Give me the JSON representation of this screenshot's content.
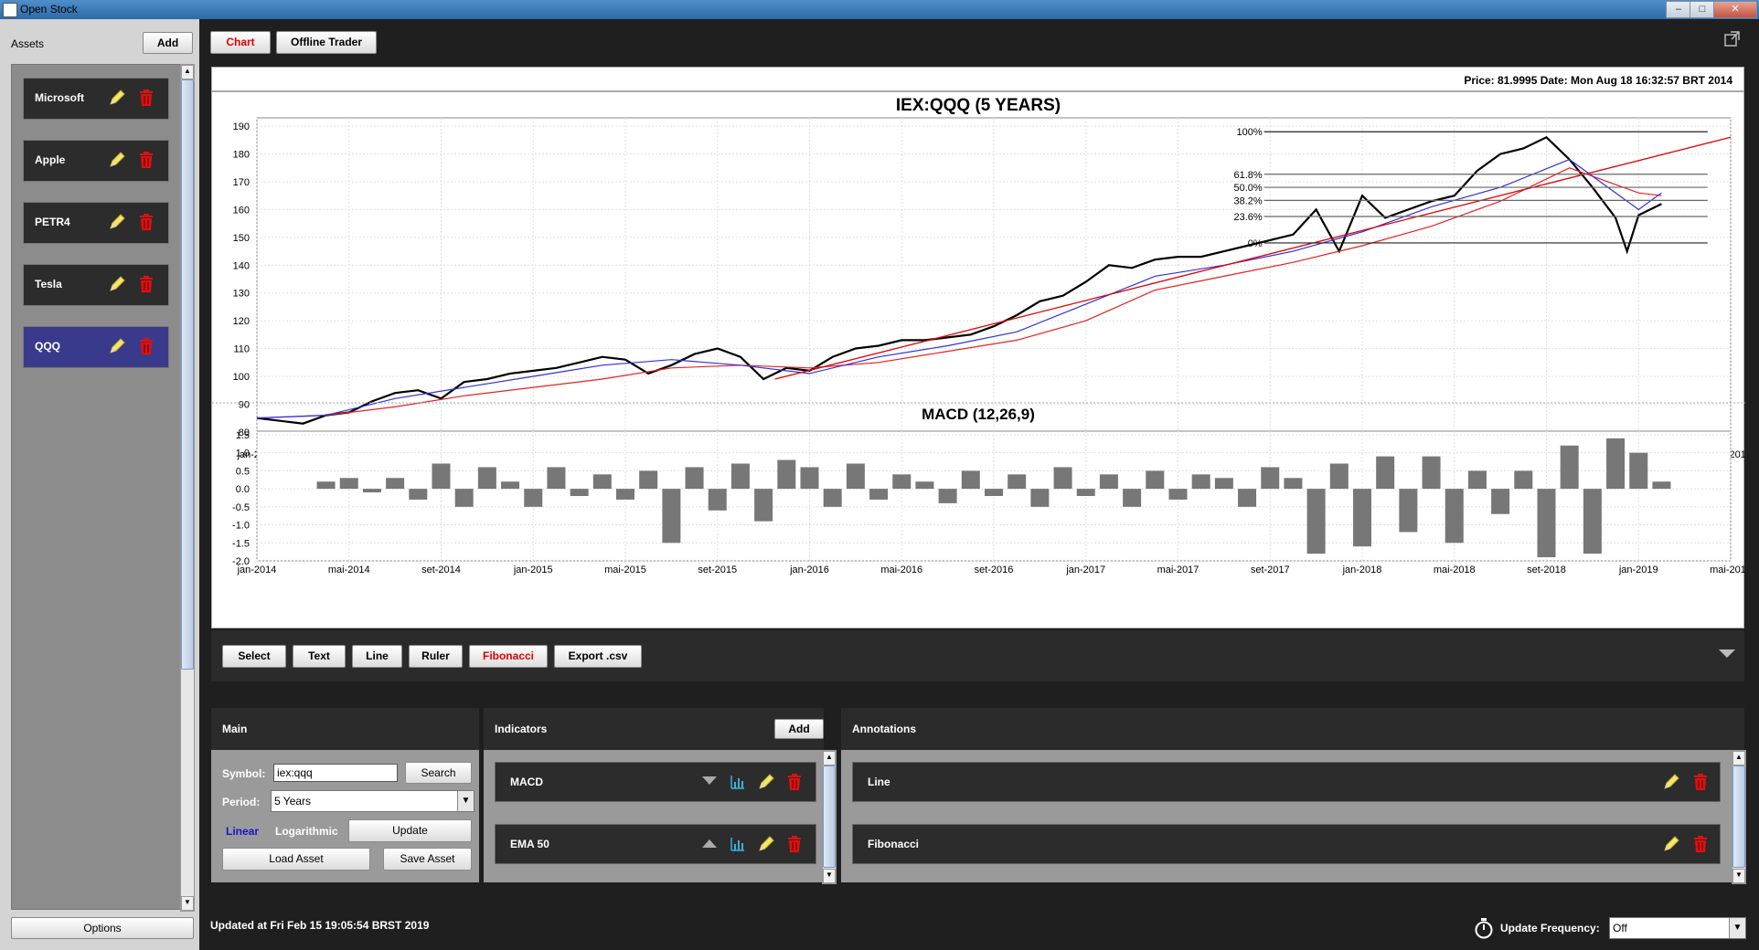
{
  "window": {
    "title": "Open Stock",
    "minimize": "–",
    "maximize": "□",
    "close": "✕"
  },
  "sidebar": {
    "assets_label": "Assets",
    "add_label": "Add",
    "assets": [
      {
        "label": "Microsoft",
        "selected": false
      },
      {
        "label": "Apple",
        "selected": false
      },
      {
        "label": "PETR4",
        "selected": false
      },
      {
        "label": "Tesla",
        "selected": false
      },
      {
        "label": "QQQ",
        "selected": true
      }
    ],
    "options_label": "Options"
  },
  "tabs": [
    {
      "label": "Chart",
      "active": true
    },
    {
      "label": "Offline Trader",
      "active": false
    }
  ],
  "price_info": "Price: 81.9995 Date: Mon Aug 18 16:32:57 BRT 2014",
  "chart_data": [
    {
      "type": "line",
      "title": "IEX:QQQ (5 YEARS)",
      "x_ticks": [
        "jan-2014",
        "mai-2014",
        "set-2014",
        "jan-2015",
        "mai-2015",
        "set-2015",
        "jan-2016",
        "mai-2016",
        "set-2016",
        "jan-2017",
        "mai-2017",
        "set-2017",
        "jan-2018",
        "mai-2018",
        "set-2018",
        "jan-2019",
        "mai-2019"
      ],
      "y_ticks": [
        80,
        90,
        100,
        110,
        120,
        130,
        140,
        150,
        160,
        170,
        180,
        190
      ],
      "ylim": [
        76,
        193
      ],
      "xlim": [
        0,
        64
      ],
      "x_unit": "months since jan-2014",
      "series": [
        {
          "color": "#000000",
          "x": [
            0,
            1,
            2,
            3,
            4,
            5,
            6,
            7,
            8,
            9,
            10,
            11,
            12,
            13,
            14,
            15,
            16,
            17,
            18,
            19,
            20,
            21,
            22,
            23,
            24,
            25,
            26,
            27,
            28,
            29,
            30,
            31,
            32,
            33,
            34,
            35,
            36,
            37,
            38,
            39,
            40,
            41,
            42,
            43,
            44,
            45,
            46,
            47,
            48,
            49,
            50,
            51,
            52,
            53,
            54,
            55,
            56,
            57,
            58,
            59,
            59.5,
            60,
            61
          ],
          "y": [
            85,
            84,
            83,
            86,
            87,
            91,
            94,
            95,
            92,
            98,
            99,
            101,
            102,
            103,
            105,
            107,
            106,
            101,
            104,
            108,
            110,
            107,
            99,
            103,
            102,
            107,
            110,
            111,
            113,
            113,
            114,
            115,
            118,
            122,
            127,
            129,
            134,
            140,
            139,
            142,
            143,
            143,
            145,
            147,
            149,
            151,
            160,
            145,
            165,
            157,
            160,
            163,
            165,
            174,
            180,
            182,
            186,
            178,
            168,
            157,
            145,
            158,
            162
          ]
        },
        {
          "color": "#e82020",
          "x": [
            0,
            3,
            6,
            9,
            12,
            15,
            18,
            21,
            24,
            27,
            30,
            33,
            36,
            39,
            42,
            45,
            48,
            51,
            54,
            57,
            60,
            61
          ],
          "y": [
            85,
            86,
            89,
            93,
            96,
            99,
            103,
            104,
            103,
            105,
            109,
            113,
            120,
            131,
            136,
            141,
            147,
            154,
            163,
            175,
            166,
            165
          ]
        },
        {
          "color": "#3030e0",
          "x": [
            0,
            3,
            6,
            9,
            12,
            15,
            18,
            21,
            24,
            27,
            30,
            33,
            36,
            39,
            42,
            45,
            48,
            51,
            54,
            57,
            60,
            61
          ],
          "y": [
            85,
            86,
            92,
            96,
            100,
            104,
            106,
            104,
            101,
            107,
            111,
            116,
            126,
            136,
            140,
            145,
            152,
            161,
            168,
            178,
            160,
            166
          ]
        }
      ],
      "trendline": {
        "x": [
          22.5,
          64
        ],
        "y": [
          99,
          186
        ],
        "color": "#e00000"
      },
      "fibonacci": {
        "x_start": 43.5,
        "x_end": 63,
        "levels": [
          {
            "label": "100%",
            "value": 188
          },
          {
            "label": "61.8%",
            "value": 172.7
          },
          {
            "label": "50.0%",
            "value": 168
          },
          {
            "label": "38.2%",
            "value": 163.3
          },
          {
            "label": "23.6%",
            "value": 157.5
          },
          {
            "label": "0%",
            "value": 148
          }
        ]
      }
    },
    {
      "type": "bar",
      "title": "MACD (12,26,9)",
      "x_ticks": [
        "jan-2014",
        "mai-2014",
        "set-2014",
        "jan-2015",
        "mai-2015",
        "set-2015",
        "jan-2016",
        "mai-2016",
        "set-2016",
        "jan-2017",
        "mai-2017",
        "set-2017",
        "jan-2018",
        "mai-2018",
        "set-2018",
        "jan-2019",
        "mai-2019"
      ],
      "y_ticks": [
        "1.5",
        "1.0",
        "0.5",
        "0.0",
        "-0.5",
        "-1.0",
        "-1.5",
        "-2.0"
      ],
      "ylim": [
        -2.0,
        1.6
      ],
      "xlim": [
        0,
        64
      ],
      "color": "#777777",
      "x": [
        3,
        4,
        5,
        6,
        7,
        8,
        9,
        10,
        11,
        12,
        13,
        14,
        15,
        16,
        17,
        18,
        19,
        20,
        21,
        22,
        23,
        24,
        25,
        26,
        27,
        28,
        29,
        30,
        31,
        32,
        33,
        34,
        35,
        36,
        37,
        38,
        39,
        40,
        41,
        42,
        43,
        44,
        45,
        46,
        47,
        48,
        49,
        50,
        51,
        52,
        53,
        54,
        55,
        56,
        57,
        58,
        59,
        60,
        61
      ],
      "values": [
        0.2,
        0.3,
        -0.1,
        0.3,
        -0.3,
        0.7,
        -0.5,
        0.6,
        0.2,
        -0.5,
        0.6,
        -0.2,
        0.4,
        -0.3,
        0.5,
        -1.5,
        0.6,
        -0.6,
        0.7,
        -0.9,
        0.8,
        0.6,
        -0.5,
        0.7,
        -0.3,
        0.4,
        0.2,
        -0.4,
        0.5,
        -0.2,
        0.4,
        -0.5,
        0.6,
        -0.2,
        0.4,
        -0.5,
        0.5,
        -0.3,
        0.4,
        0.3,
        -0.5,
        0.6,
        0.3,
        -1.8,
        0.7,
        -1.6,
        0.9,
        -1.2,
        0.9,
        -1.5,
        0.5,
        -0.7,
        0.5,
        -1.9,
        1.2,
        -1.8,
        1.4,
        1.0,
        0.2
      ]
    }
  ],
  "tools": [
    {
      "label": "Select",
      "red": false
    },
    {
      "label": "Text",
      "red": false
    },
    {
      "label": "Line",
      "red": false
    },
    {
      "label": "Ruler",
      "red": false
    },
    {
      "label": "Fibonacci",
      "red": true
    },
    {
      "label": "Export .csv",
      "red": false
    }
  ],
  "main_panel": {
    "title": "Main",
    "symbol_label": "Symbol:",
    "symbol_value": "iex:qqq",
    "search_label": "Search",
    "period_label": "Period:",
    "period_value": "5 Years",
    "linear_label": "Linear",
    "log_label": "Logarithmic",
    "update_label": "Update",
    "load_label": "Load Asset",
    "save_label": "Save Asset"
  },
  "indicators_panel": {
    "title": "Indicators",
    "add_label": "Add",
    "items": [
      {
        "label": "MACD",
        "arrow": "down"
      },
      {
        "label": "EMA 50",
        "arrow": "up"
      }
    ]
  },
  "annotations_panel": {
    "title": "Annotations",
    "items": [
      {
        "label": "Line"
      },
      {
        "label": "Fibonacci"
      }
    ]
  },
  "status": {
    "updated_text": "Updated at Fri Feb 15 19:05:54 BRST 2019",
    "frequency_label": "Update Frequency:",
    "frequency_value": "Off"
  },
  "colors": {
    "selected_asset": "#3a3a8c",
    "active_tab_text": "#e00000",
    "pencil": "#f5e663",
    "trash": "#e01010",
    "chart_icon": "#3ab0d8"
  }
}
